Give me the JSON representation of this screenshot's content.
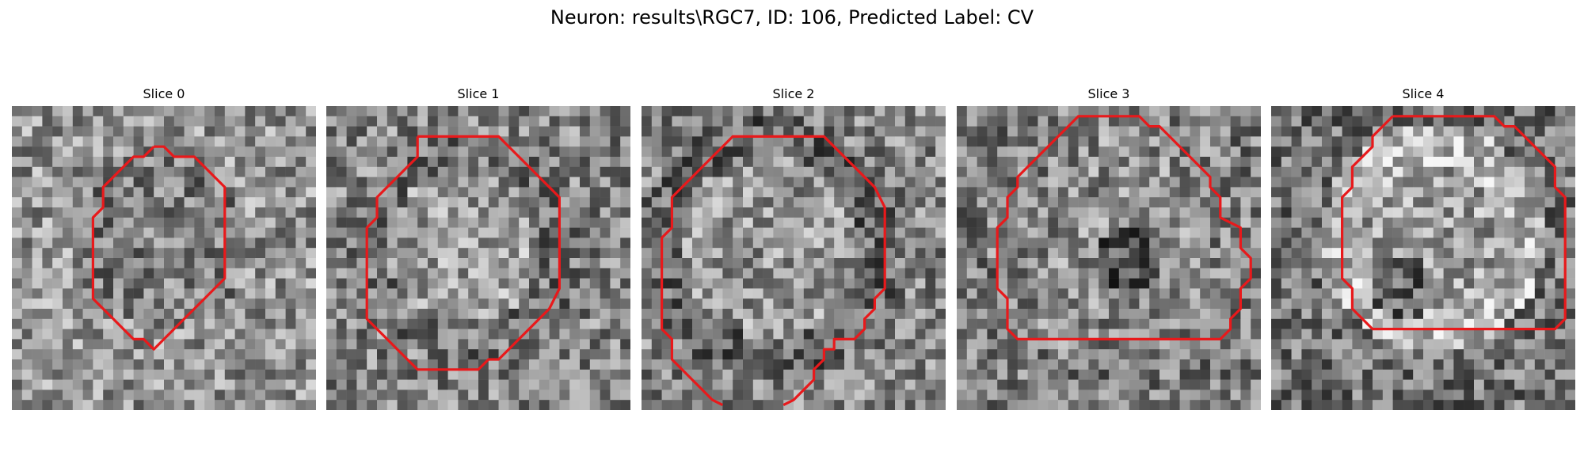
{
  "figure": {
    "title": "Neuron: results\\RGC7, ID: 106, Predicted Label: CV"
  },
  "panels": [
    {
      "title": "Slice 0"
    },
    {
      "title": "Slice 1"
    },
    {
      "title": "Slice 2"
    },
    {
      "title": "Slice 3"
    },
    {
      "title": "Slice 4"
    }
  ],
  "colors": {
    "contour": "#e8191b",
    "background": "#ffffff"
  }
}
